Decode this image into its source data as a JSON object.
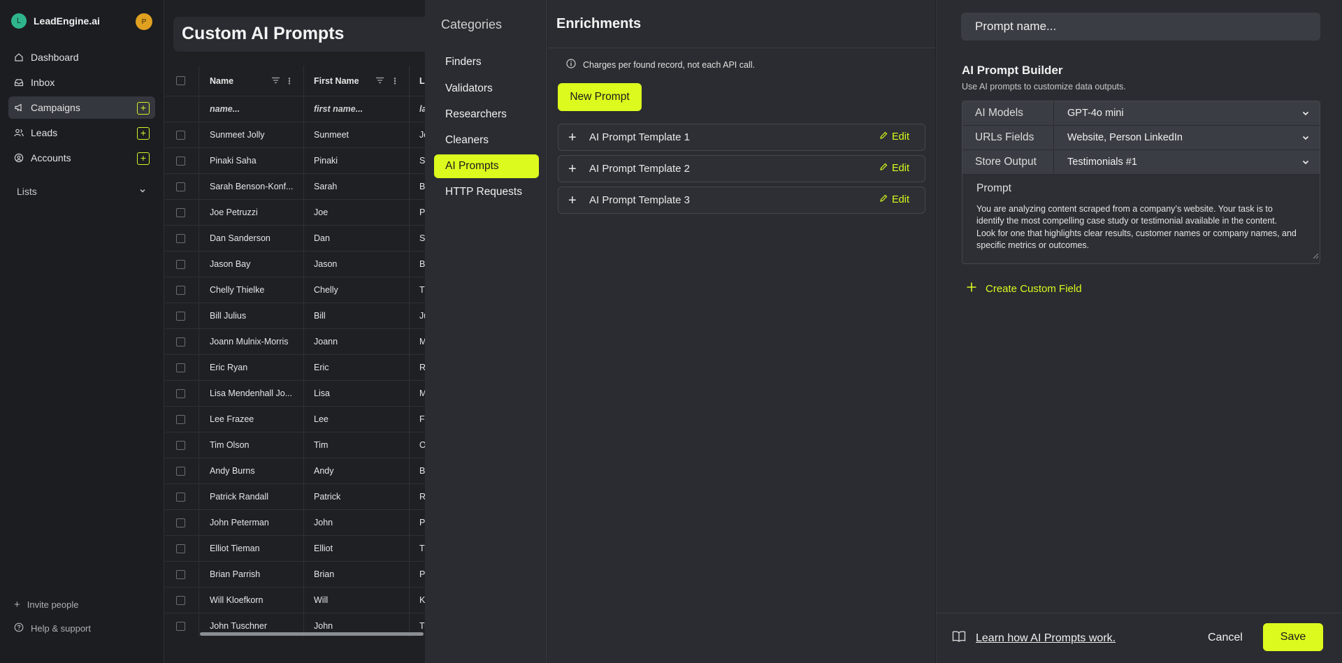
{
  "app": {
    "brand": "LeadEngine.ai",
    "brand_initial": "L",
    "profile_initial": "P"
  },
  "sidebar": {
    "items": [
      {
        "label": "Dashboard",
        "icon": "home-icon"
      },
      {
        "label": "Inbox",
        "icon": "inbox-icon"
      },
      {
        "label": "Campaigns",
        "icon": "megaphone-icon",
        "active": true,
        "plus": true
      },
      {
        "label": "Leads",
        "icon": "users-icon",
        "plus": true
      },
      {
        "label": "Accounts",
        "icon": "account-icon",
        "plus": true
      }
    ],
    "lists_label": "Lists",
    "invite": "Invite people",
    "help": "Help & support"
  },
  "page": {
    "title": "Custom AI Prompts",
    "columns": [
      "Name",
      "First Name",
      "La"
    ],
    "filters": [
      "name...",
      "first name...",
      "la"
    ],
    "rows": [
      [
        "Sunmeet Jolly",
        "Sunmeet",
        "Jo"
      ],
      [
        "Pinaki Saha",
        "Pinaki",
        "Sa"
      ],
      [
        "Sarah Benson-Konf...",
        "Sarah",
        "Be"
      ],
      [
        "Joe Petruzzi",
        "Joe",
        "Pe"
      ],
      [
        "Dan Sanderson",
        "Dan",
        "Sa"
      ],
      [
        "Jason Bay",
        "Jason",
        "Ba"
      ],
      [
        "Chelly Thielke",
        "Chelly",
        "Th"
      ],
      [
        "Bill Julius",
        "Bill",
        "Ju"
      ],
      [
        "Joann Mulnix-Morris",
        "Joann",
        "Mu"
      ],
      [
        "Eric Ryan",
        "Eric",
        "Ry"
      ],
      [
        "Lisa Mendenhall Jo...",
        "Lisa",
        "Me"
      ],
      [
        "Lee Frazee",
        "Lee",
        "Fr"
      ],
      [
        "Tim Olson",
        "Tim",
        "Ol"
      ],
      [
        "Andy Burns",
        "Andy",
        "Bu"
      ],
      [
        "Patrick Randall",
        "Patrick",
        "Ra"
      ],
      [
        "John Peterman",
        "John",
        "Pe"
      ],
      [
        "Elliot Tieman",
        "Elliot",
        "Ti"
      ],
      [
        "Brian Parrish",
        "Brian",
        "Pa"
      ],
      [
        "Will Kloefkorn",
        "Will",
        "Kl"
      ],
      [
        "John Tuschner",
        "John",
        "Tu"
      ]
    ]
  },
  "categories": {
    "title": "Categories",
    "items": [
      {
        "label": "Finders"
      },
      {
        "label": "Validators"
      },
      {
        "label": "Researchers"
      },
      {
        "label": "Cleaners"
      },
      {
        "label": "AI Prompts",
        "active": true
      },
      {
        "label": "HTTP Requests"
      }
    ]
  },
  "enrichments": {
    "title": "Enrichments",
    "info": "Charges per found record, not each API call.",
    "new_prompt": "New Prompt",
    "templates": [
      "AI Prompt Template 1",
      "AI Prompt Template 2",
      "AI Prompt Template 3"
    ],
    "edit_label": "Edit"
  },
  "builder": {
    "name_placeholder": "Prompt name...",
    "title": "AI Prompt Builder",
    "subtitle": "Use AI prompts to customize data outputs.",
    "rows": [
      {
        "label": "AI Models",
        "value": "GPT-4o mini"
      },
      {
        "label": "URLs Fields",
        "value": "Website, Person LinkedIn"
      },
      {
        "label": "Store Output",
        "value": "Testimonials #1"
      }
    ],
    "prompt_label": "Prompt",
    "prompt_text": "You are analyzing content scraped from a company’s website. Your task is to identify the most compelling case study or testimonial available in the content. Look for one that highlights clear results, customer names or company names, and specific metrics or outcomes.",
    "create_field": "Create Custom Field",
    "learn": "Learn how AI Prompts work.",
    "cancel": "Cancel",
    "save": "Save"
  },
  "colors": {
    "accent": "#dcfa1e",
    "panel": "#2a2c31",
    "background": "#1e2024"
  }
}
